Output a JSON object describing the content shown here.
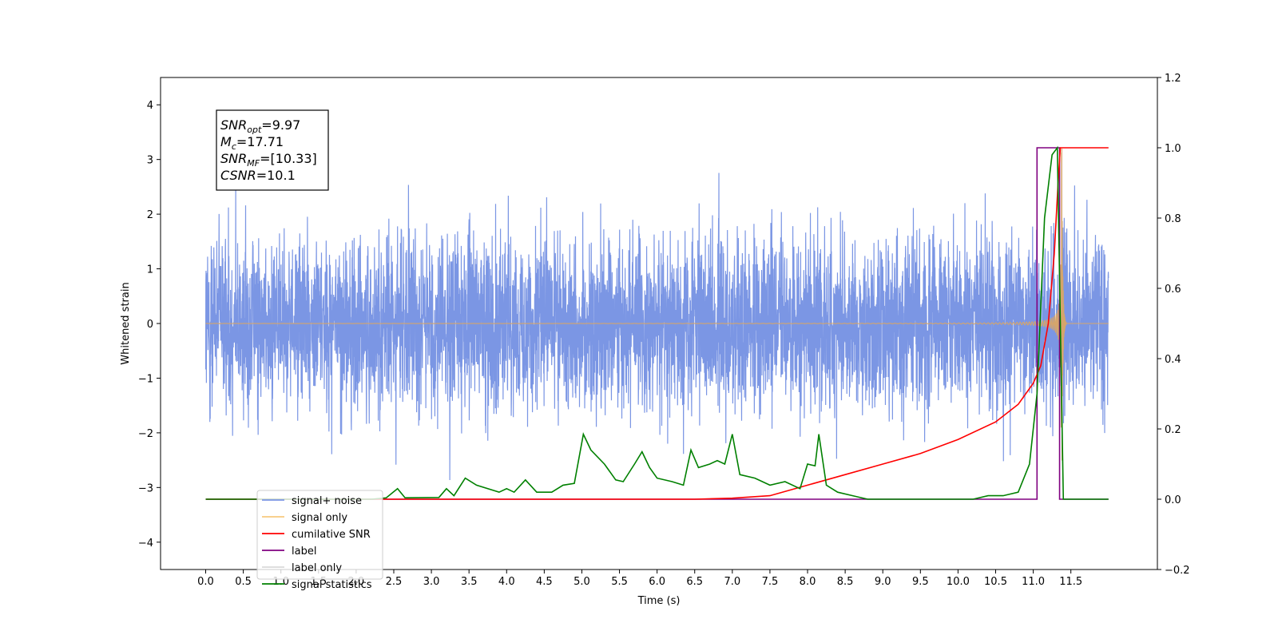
{
  "chart_data": {
    "type": "line",
    "xlabel": "Time (s)",
    "ylabel_left": "Whitened strain",
    "ylabel_right": "",
    "x_ticks": [
      "0.0",
      "0.5",
      "1.0",
      "1.5",
      "2.0",
      "2.5",
      "3.0",
      "3.5",
      "4.0",
      "4.5",
      "5.0",
      "5.5",
      "6.0",
      "6.5",
      "7.0",
      "7.5",
      "8.0",
      "8.5",
      "9.0",
      "9.5",
      "10.0",
      "10.5",
      "11.0",
      "11.5"
    ],
    "y_left_ticks": [
      "4",
      "3",
      "2",
      "1",
      "0",
      "−1",
      "−2",
      "−3",
      "−4"
    ],
    "y_right_ticks": [
      "1.2",
      "1.0",
      "0.8",
      "0.6",
      "0.4",
      "0.2",
      "0.0",
      "−0.2"
    ],
    "xlim": [
      -0.6,
      12.65
    ],
    "ylim_left": [
      -4.5,
      4.5
    ],
    "ylim_right": [
      -0.2,
      1.2
    ],
    "annotation": [
      {
        "base": "SNR",
        "sub": "opt",
        "value": "=9.97"
      },
      {
        "base": "M",
        "sub": "c",
        "value": "=17.71"
      },
      {
        "base": "SNR",
        "sub": "MF",
        "value": "=[10.33]"
      },
      {
        "base": "CSNR",
        "sub": "",
        "value": "=10.1"
      }
    ],
    "legend": [
      {
        "label": "signal+ noise",
        "color": "#7b96e4"
      },
      {
        "label": "signal only",
        "color": "#f7c97e"
      },
      {
        "label": "cumilative SNR",
        "color": "#ff0000"
      },
      {
        "label": "label",
        "color": "#800080"
      },
      {
        "label": "label only",
        "color": "#d9d9d9"
      },
      {
        "label": "signal statistics",
        "color": "#008000"
      }
    ],
    "legend_placement": "lower-left",
    "series": [
      {
        "name": "signal+ noise",
        "axis": "left",
        "kind": "noise",
        "x_range": [
          0.0,
          12.0
        ],
        "amplitude_std": 1.0,
        "color": "#7b96e4"
      },
      {
        "name": "signal only",
        "axis": "left",
        "kind": "chirp",
        "x_range": [
          0.0,
          12.0
        ],
        "merger_time": 11.38,
        "peak_amplitude": 3.2,
        "color": "#d5a56b"
      },
      {
        "name": "cumilative SNR",
        "axis": "right",
        "color": "#ff0000",
        "points": [
          [
            0,
            0
          ],
          [
            6.5,
            0
          ],
          [
            7.0,
            0.003
          ],
          [
            7.5,
            0.01
          ],
          [
            8.0,
            0.04
          ],
          [
            8.5,
            0.07
          ],
          [
            9.0,
            0.1
          ],
          [
            9.5,
            0.13
          ],
          [
            10.0,
            0.17
          ],
          [
            10.5,
            0.22
          ],
          [
            10.8,
            0.27
          ],
          [
            11.0,
            0.33
          ],
          [
            11.1,
            0.38
          ],
          [
            11.2,
            0.5
          ],
          [
            11.28,
            0.7
          ],
          [
            11.33,
            0.9
          ],
          [
            11.36,
            1.0
          ],
          [
            12.0,
            1.0
          ]
        ]
      },
      {
        "name": "label",
        "axis": "right",
        "color": "#800080",
        "points": [
          [
            0,
            0
          ],
          [
            11.05,
            0
          ],
          [
            11.05,
            1.0
          ],
          [
            11.35,
            1.0
          ],
          [
            11.35,
            0.0
          ],
          [
            12.0,
            0.0
          ]
        ]
      },
      {
        "name": "signal statistics",
        "axis": "right",
        "color": "#008000",
        "points": [
          [
            0,
            0
          ],
          [
            2.2,
            0
          ],
          [
            2.4,
            0.004
          ],
          [
            2.55,
            0.03
          ],
          [
            2.65,
            0.004
          ],
          [
            3.1,
            0.005
          ],
          [
            3.2,
            0.03
          ],
          [
            3.3,
            0.01
          ],
          [
            3.45,
            0.06
          ],
          [
            3.6,
            0.04
          ],
          [
            3.9,
            0.02
          ],
          [
            4.0,
            0.03
          ],
          [
            4.1,
            0.02
          ],
          [
            4.25,
            0.055
          ],
          [
            4.4,
            0.02
          ],
          [
            4.6,
            0.02
          ],
          [
            4.75,
            0.04
          ],
          [
            4.9,
            0.045
          ],
          [
            5.02,
            0.185
          ],
          [
            5.12,
            0.14
          ],
          [
            5.3,
            0.1
          ],
          [
            5.45,
            0.055
          ],
          [
            5.55,
            0.05
          ],
          [
            5.7,
            0.1
          ],
          [
            5.8,
            0.135
          ],
          [
            5.9,
            0.09
          ],
          [
            6.0,
            0.06
          ],
          [
            6.2,
            0.05
          ],
          [
            6.35,
            0.04
          ],
          [
            6.45,
            0.14
          ],
          [
            6.55,
            0.09
          ],
          [
            6.7,
            0.1
          ],
          [
            6.8,
            0.11
          ],
          [
            6.9,
            0.1
          ],
          [
            7.0,
            0.185
          ],
          [
            7.1,
            0.07
          ],
          [
            7.3,
            0.06
          ],
          [
            7.5,
            0.04
          ],
          [
            7.7,
            0.05
          ],
          [
            7.9,
            0.03
          ],
          [
            8.0,
            0.1
          ],
          [
            8.1,
            0.095
          ],
          [
            8.15,
            0.185
          ],
          [
            8.25,
            0.04
          ],
          [
            8.4,
            0.02
          ],
          [
            8.6,
            0.01
          ],
          [
            8.8,
            0.0
          ],
          [
            9.5,
            0.0
          ],
          [
            10.2,
            0.0
          ],
          [
            10.4,
            0.01
          ],
          [
            10.6,
            0.01
          ],
          [
            10.8,
            0.02
          ],
          [
            10.95,
            0.1
          ],
          [
            11.05,
            0.3
          ],
          [
            11.15,
            0.8
          ],
          [
            11.25,
            0.98
          ],
          [
            11.32,
            1.0
          ],
          [
            11.4,
            0.0
          ],
          [
            12.0,
            0.0
          ]
        ]
      }
    ]
  }
}
